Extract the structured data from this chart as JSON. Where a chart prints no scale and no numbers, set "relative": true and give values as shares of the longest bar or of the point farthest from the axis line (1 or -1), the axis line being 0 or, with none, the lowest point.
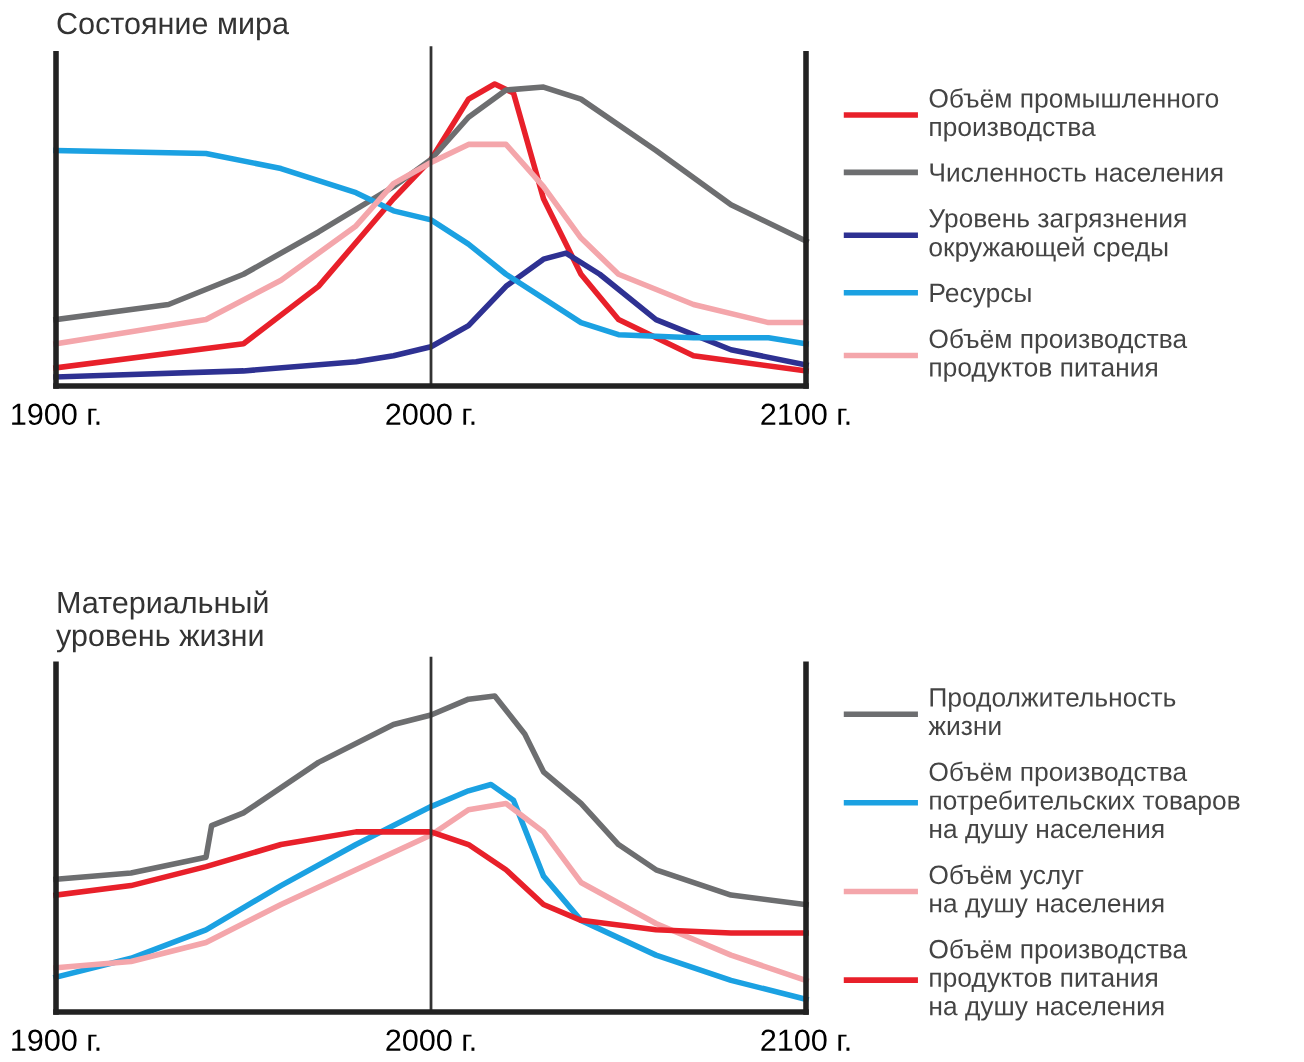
{
  "chart_data": [
    {
      "type": "line",
      "title": "Состояние мира",
      "relative": true,
      "xlim": [
        1900,
        2100
      ],
      "xticks": [
        {
          "value": 1900,
          "label": "1900 г."
        },
        {
          "value": 2000,
          "label": "2000 г."
        },
        {
          "value": 2100,
          "label": "2100 г."
        }
      ],
      "ref_lines": [
        {
          "axis": "x",
          "value": 2000,
          "color": "#333333"
        }
      ],
      "legend": "right",
      "grid": false,
      "series": [
        {
          "name": "Объём промышленного\nпроизводства",
          "color": "#e8202a",
          "x": [
            1900,
            1950,
            1970,
            1990,
            2000,
            2010,
            2017,
            2022,
            2030,
            2040,
            2050,
            2070,
            2100
          ],
          "values": [
            0.06,
            0.14,
            0.33,
            0.62,
            0.75,
            0.95,
            1.0,
            0.97,
            0.62,
            0.37,
            0.22,
            0.1,
            0.05
          ]
        },
        {
          "name": "Численность населения",
          "color": "#6d6e70",
          "x": [
            1900,
            1930,
            1950,
            1970,
            1990,
            2000,
            2010,
            2020,
            2030,
            2040,
            2060,
            2080,
            2100
          ],
          "values": [
            0.22,
            0.27,
            0.37,
            0.51,
            0.66,
            0.75,
            0.89,
            0.98,
            0.99,
            0.95,
            0.78,
            0.6,
            0.48
          ]
        },
        {
          "name": "Уровень загрязнения\nокружающей среды",
          "color": "#2e3192",
          "x": [
            1900,
            1950,
            1980,
            1990,
            2000,
            2010,
            2020,
            2030,
            2036,
            2045,
            2060,
            2080,
            2100
          ],
          "values": [
            0.03,
            0.05,
            0.08,
            0.1,
            0.13,
            0.2,
            0.33,
            0.42,
            0.44,
            0.37,
            0.22,
            0.12,
            0.07
          ]
        },
        {
          "name": "Ресурсы",
          "color": "#1ba1e2",
          "x": [
            1900,
            1940,
            1960,
            1980,
            1990,
            2000,
            2010,
            2020,
            2030,
            2040,
            2050,
            2070,
            2090,
            2100
          ],
          "values": [
            0.78,
            0.77,
            0.72,
            0.64,
            0.58,
            0.55,
            0.47,
            0.37,
            0.29,
            0.21,
            0.17,
            0.16,
            0.16,
            0.14
          ]
        },
        {
          "name": "Объём производства\nпродуктов питания",
          "color": "#f4a6ab",
          "x": [
            1900,
            1920,
            1940,
            1960,
            1980,
            1990,
            2000,
            2010,
            2020,
            2030,
            2040,
            2050,
            2070,
            2090,
            2100
          ],
          "values": [
            0.14,
            0.18,
            0.22,
            0.35,
            0.53,
            0.67,
            0.74,
            0.8,
            0.8,
            0.66,
            0.49,
            0.37,
            0.27,
            0.21,
            0.21
          ]
        }
      ]
    },
    {
      "type": "line",
      "title": "Материальный\nуровень жизни",
      "relative": true,
      "xlim": [
        1900,
        2100
      ],
      "xticks": [
        {
          "value": 1900,
          "label": "1900 г."
        },
        {
          "value": 2000,
          "label": "2000 г."
        },
        {
          "value": 2100,
          "label": "2100 г."
        }
      ],
      "ref_lines": [
        {
          "axis": "x",
          "value": 2000,
          "color": "#333333"
        }
      ],
      "legend": "right",
      "grid": false,
      "series": [
        {
          "name": "Продолжительность\nжизни",
          "color": "#6d6e70",
          "x": [
            1900,
            1920,
            1940,
            1941.5,
            1950,
            1970,
            1990,
            2000,
            2010,
            2017,
            2025,
            2030,
            2040,
            2050,
            2060,
            2080,
            2100
          ],
          "values": [
            0.42,
            0.44,
            0.49,
            0.59,
            0.63,
            0.79,
            0.91,
            0.94,
            0.99,
            1.0,
            0.88,
            0.76,
            0.66,
            0.53,
            0.45,
            0.37,
            0.34
          ]
        },
        {
          "name": "Объём производства\nпотребительских товаров\nна душу населения",
          "color": "#1ba1e2",
          "x": [
            1900,
            1920,
            1940,
            1960,
            1980,
            2000,
            2010,
            2016,
            2022,
            2030,
            2040,
            2060,
            2080,
            2100
          ],
          "values": [
            0.11,
            0.17,
            0.26,
            0.4,
            0.53,
            0.65,
            0.7,
            0.72,
            0.67,
            0.43,
            0.29,
            0.18,
            0.1,
            0.04
          ]
        },
        {
          "name": "Объём услуг\nна душу населения",
          "color": "#f4a6ab",
          "x": [
            1900,
            1920,
            1940,
            1960,
            1980,
            2000,
            2010,
            2020,
            2030,
            2040,
            2060,
            2080,
            2100
          ],
          "values": [
            0.14,
            0.16,
            0.22,
            0.34,
            0.45,
            0.56,
            0.64,
            0.66,
            0.57,
            0.41,
            0.28,
            0.18,
            0.1
          ]
        },
        {
          "name": "Объём производства\nпродуктов питания\nна душу населения",
          "color": "#e8202a",
          "x": [
            1900,
            1920,
            1940,
            1960,
            1980,
            1990,
            2000,
            2010,
            2020,
            2030,
            2040,
            2060,
            2080,
            2100
          ],
          "values": [
            0.37,
            0.4,
            0.46,
            0.53,
            0.57,
            0.57,
            0.57,
            0.53,
            0.45,
            0.34,
            0.29,
            0.26,
            0.25,
            0.25
          ]
        }
      ]
    }
  ]
}
